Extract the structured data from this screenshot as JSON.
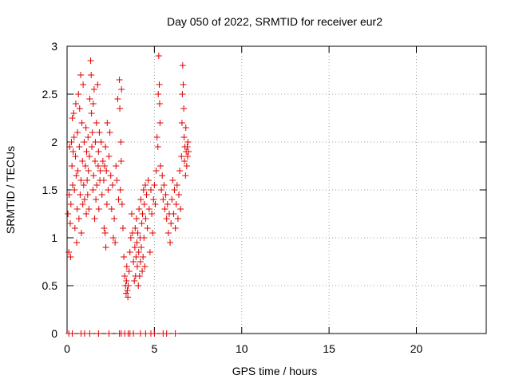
{
  "chart_data": {
    "type": "scatter",
    "title": "Day 050 of 2022, SRMTID for receiver eur2",
    "xlabel": "GPS time / hours",
    "ylabel": "SRMTID / TECUs",
    "xlim": [
      0,
      24
    ],
    "ylim": [
      0,
      3
    ],
    "x_ticks": [
      0,
      5,
      10,
      15,
      20
    ],
    "y_ticks": [
      0,
      0.5,
      1,
      1.5,
      2,
      2.5,
      3
    ],
    "x_tick_labels": [
      "0",
      "5",
      "10",
      "15",
      "20"
    ],
    "y_tick_labels": [
      "0",
      "0.5",
      "1",
      "1.5",
      "2",
      "2.5",
      "3"
    ],
    "grid": true,
    "marker": "+",
    "series": [
      {
        "name": "SRMTID",
        "color": "#e00000",
        "points": [
          [
            0.05,
            1.25
          ],
          [
            0.1,
            0.85
          ],
          [
            0.12,
            1.45
          ],
          [
            0.15,
            1.95
          ],
          [
            0.18,
            1.15
          ],
          [
            0.2,
            0.8
          ],
          [
            0.22,
            1.35
          ],
          [
            0.25,
            2.0
          ],
          [
            0.28,
            1.75
          ],
          [
            0.3,
            2.25
          ],
          [
            0.32,
            1.55
          ],
          [
            0.35,
            1.9
          ],
          [
            0.38,
            2.3
          ],
          [
            0.4,
            2.05
          ],
          [
            0.42,
            1.5
          ],
          [
            0.45,
            1.1
          ],
          [
            0.48,
            1.85
          ],
          [
            0.5,
            2.4
          ],
          [
            0.52,
            1.65
          ],
          [
            0.55,
            0.95
          ],
          [
            0.58,
            1.3
          ],
          [
            0.6,
            2.1
          ],
          [
            0.62,
            1.7
          ],
          [
            0.65,
            2.5
          ],
          [
            0.68,
            1.2
          ],
          [
            0.7,
            1.95
          ],
          [
            0.72,
            2.35
          ],
          [
            0.75,
            1.45
          ],
          [
            0.78,
            2.7
          ],
          [
            0.8,
            1.6
          ],
          [
            0.82,
            1.05
          ],
          [
            0.85,
            2.2
          ],
          [
            0.88,
            1.8
          ],
          [
            0.9,
            1.35
          ],
          [
            0.92,
            2.6
          ],
          [
            0.95,
            1.55
          ],
          [
            0.98,
            2.0
          ],
          [
            1.0,
            1.4
          ],
          [
            1.05,
            1.75
          ],
          [
            1.08,
            2.15
          ],
          [
            1.1,
            1.25
          ],
          [
            1.12,
            1.9
          ],
          [
            1.15,
            1.6
          ],
          [
            1.18,
            1.45
          ],
          [
            1.2,
            2.05
          ],
          [
            1.22,
            1.7
          ],
          [
            1.25,
            1.3
          ],
          [
            1.28,
            1.85
          ],
          [
            1.3,
            2.45
          ],
          [
            1.35,
            2.85
          ],
          [
            1.38,
            2.7
          ],
          [
            1.4,
            2.3
          ],
          [
            1.42,
            1.95
          ],
          [
            1.45,
            2.1
          ],
          [
            1.48,
            1.5
          ],
          [
            1.5,
            2.4
          ],
          [
            1.52,
            1.65
          ],
          [
            1.55,
            2.55
          ],
          [
            1.58,
            1.2
          ],
          [
            1.6,
            1.8
          ],
          [
            1.62,
            2.0
          ],
          [
            1.65,
            1.4
          ],
          [
            1.68,
            2.2
          ],
          [
            1.7,
            1.55
          ],
          [
            1.75,
            2.6
          ],
          [
            1.78,
            1.75
          ],
          [
            1.8,
            1.9
          ],
          [
            1.82,
            1.3
          ],
          [
            1.85,
            2.1
          ],
          [
            1.88,
            1.6
          ],
          [
            1.9,
            1.7
          ],
          [
            1.95,
            2.0
          ],
          [
            2.0,
            1.45
          ],
          [
            2.05,
            1.8
          ],
          [
            2.1,
            1.6
          ],
          [
            2.12,
            1.1
          ],
          [
            2.15,
            1.75
          ],
          [
            2.18,
            1.05
          ],
          [
            2.2,
            1.95
          ],
          [
            2.22,
            0.9
          ],
          [
            2.25,
            1.7
          ],
          [
            2.28,
            1.35
          ],
          [
            2.3,
            2.2
          ],
          [
            2.35,
            1.5
          ],
          [
            2.4,
            1.85
          ],
          [
            2.45,
            2.1
          ],
          [
            2.5,
            1.65
          ],
          [
            2.55,
            1.3
          ],
          [
            2.6,
            1.55
          ],
          [
            2.65,
            1.0
          ],
          [
            2.7,
            1.2
          ],
          [
            2.75,
            0.95
          ],
          [
            2.8,
            1.75
          ],
          [
            2.85,
            1.6
          ],
          [
            2.9,
            2.45
          ],
          [
            2.95,
            1.4
          ],
          [
            3.0,
            2.65
          ],
          [
            3.02,
            2.35
          ],
          [
            3.05,
            1.5
          ],
          [
            3.08,
            2.0
          ],
          [
            3.1,
            1.8
          ],
          [
            3.12,
            2.55
          ],
          [
            3.15,
            1.35
          ],
          [
            3.2,
            1.1
          ],
          [
            3.25,
            0.8
          ],
          [
            3.3,
            0.6
          ],
          [
            3.35,
            0.5
          ],
          [
            3.38,
            0.42
          ],
          [
            3.4,
            0.55
          ],
          [
            3.42,
            0.7
          ],
          [
            3.45,
            0.45
          ],
          [
            3.48,
            0.38
          ],
          [
            3.5,
            0.5
          ],
          [
            3.55,
            0.65
          ],
          [
            3.6,
            0.85
          ],
          [
            3.65,
            1.0
          ],
          [
            3.7,
            1.25
          ],
          [
            3.75,
            1.05
          ],
          [
            3.8,
            0.75
          ],
          [
            3.85,
            0.55
          ],
          [
            3.88,
            0.9
          ],
          [
            3.9,
            1.1
          ],
          [
            3.92,
            0.6
          ],
          [
            3.95,
            0.8
          ],
          [
            3.98,
            1.2
          ],
          [
            4.0,
            0.95
          ],
          [
            4.02,
            0.7
          ],
          [
            4.05,
            1.05
          ],
          [
            4.08,
            0.5
          ],
          [
            4.1,
            0.85
          ],
          [
            4.12,
            1.3
          ],
          [
            4.15,
            0.6
          ],
          [
            4.18,
            1.0
          ],
          [
            4.2,
            0.75
          ],
          [
            4.22,
            1.4
          ],
          [
            4.25,
            0.9
          ],
          [
            4.28,
            1.15
          ],
          [
            4.3,
            0.65
          ],
          [
            4.32,
            1.25
          ],
          [
            4.35,
            0.8
          ],
          [
            4.38,
            1.5
          ],
          [
            4.4,
            1.0
          ],
          [
            4.42,
            1.35
          ],
          [
            4.45,
            0.7
          ],
          [
            4.48,
            1.55
          ],
          [
            4.5,
            1.2
          ],
          [
            4.55,
            1.45
          ],
          [
            4.6,
            1.1
          ],
          [
            4.65,
            1.6
          ],
          [
            4.7,
            1.3
          ],
          [
            4.75,
            0.85
          ],
          [
            4.8,
            1.5
          ],
          [
            4.85,
            1.25
          ],
          [
            4.9,
            1.05
          ],
          [
            4.95,
            1.4
          ],
          [
            5.0,
            1.55
          ],
          [
            5.05,
            1.35
          ],
          [
            5.1,
            1.7
          ],
          [
            5.15,
            2.05
          ],
          [
            5.2,
            1.95
          ],
          [
            5.22,
            2.5
          ],
          [
            5.25,
            2.9
          ],
          [
            5.28,
            2.6
          ],
          [
            5.3,
            2.4
          ],
          [
            5.32,
            2.2
          ],
          [
            5.35,
            1.75
          ],
          [
            5.4,
            1.5
          ],
          [
            5.45,
            1.65
          ],
          [
            5.5,
            1.4
          ],
          [
            5.55,
            1.55
          ],
          [
            5.6,
            1.3
          ],
          [
            5.65,
            1.45
          ],
          [
            5.7,
            1.2
          ],
          [
            5.75,
            1.35
          ],
          [
            5.8,
            1.05
          ],
          [
            5.85,
            1.25
          ],
          [
            5.9,
            0.95
          ],
          [
            5.95,
            1.15
          ],
          [
            6.0,
            1.4
          ],
          [
            6.05,
            1.6
          ],
          [
            6.1,
            1.25
          ],
          [
            6.15,
            1.5
          ],
          [
            6.2,
            1.1
          ],
          [
            6.25,
            1.35
          ],
          [
            6.3,
            1.55
          ],
          [
            6.35,
            1.2
          ],
          [
            6.4,
            1.45
          ],
          [
            6.45,
            1.7
          ],
          [
            6.5,
            1.3
          ],
          [
            6.55,
            1.85
          ],
          [
            6.58,
            2.2
          ],
          [
            6.6,
            2.5
          ],
          [
            6.62,
            2.8
          ],
          [
            6.65,
            2.6
          ],
          [
            6.68,
            2.35
          ],
          [
            6.7,
            2.05
          ],
          [
            6.72,
            1.8
          ],
          [
            6.75,
            1.95
          ],
          [
            6.78,
            1.65
          ],
          [
            6.8,
            2.15
          ],
          [
            6.82,
            1.9
          ],
          [
            6.85,
            1.75
          ],
          [
            6.88,
            1.95
          ],
          [
            6.9,
            1.85
          ],
          [
            6.92,
            2.0
          ],
          [
            6.95,
            1.9
          ],
          [
            0.1,
            0.0
          ],
          [
            0.3,
            0.0
          ],
          [
            0.8,
            0.0
          ],
          [
            1.0,
            0.0
          ],
          [
            1.3,
            0.0
          ],
          [
            1.8,
            0.0
          ],
          [
            2.4,
            0.0
          ],
          [
            3.0,
            0.0
          ],
          [
            3.1,
            0.0
          ],
          [
            3.3,
            0.0
          ],
          [
            3.5,
            0.0
          ],
          [
            3.6,
            0.0
          ],
          [
            3.8,
            0.0
          ],
          [
            4.2,
            0.0
          ],
          [
            4.5,
            0.0
          ],
          [
            4.8,
            0.0
          ],
          [
            5.0,
            0.0
          ],
          [
            5.5,
            0.0
          ],
          [
            5.7,
            0.0
          ],
          [
            6.2,
            0.0
          ]
        ]
      }
    ]
  }
}
